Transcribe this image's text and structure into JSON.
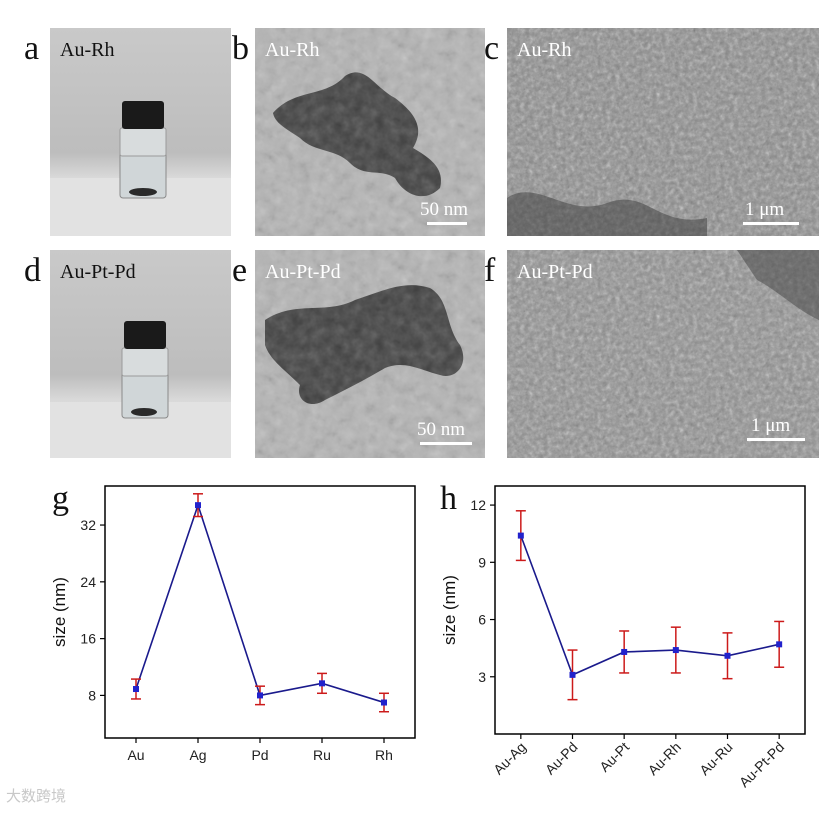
{
  "panels": {
    "a": {
      "letter": "a",
      "label": "Au-Rh"
    },
    "b": {
      "letter": "b",
      "label": "Au-Rh",
      "scale": "50 nm"
    },
    "c": {
      "letter": "c",
      "label": "Au-Rh",
      "scale": "1 μm"
    },
    "d": {
      "letter": "d",
      "label": "Au-Pt-Pd"
    },
    "e": {
      "letter": "e",
      "label": "Au-Pt-Pd",
      "scale": "50 nm"
    },
    "f": {
      "letter": "f",
      "label": "Au-Pt-Pd",
      "scale": "1 μm"
    },
    "g": {
      "letter": "g"
    },
    "h": {
      "letter": "h"
    }
  },
  "watermark": "大数跨境",
  "colors": {
    "line": "#1a1a8c",
    "marker": "#2222cc",
    "errorbar": "#cc1a1a",
    "frame": "#000000"
  },
  "chart_data": [
    {
      "type": "line",
      "panel": "g",
      "categories": [
        "Au",
        "Ag",
        "Pd",
        "Ru",
        "Rh"
      ],
      "values": [
        8.9,
        34.8,
        8.0,
        9.7,
        7.0
      ],
      "errors": [
        1.4,
        1.6,
        1.3,
        1.4,
        1.3
      ],
      "ylabel": "size (nm)",
      "yticks": [
        8,
        16,
        24,
        32
      ],
      "ylim": [
        2,
        37.5
      ]
    },
    {
      "type": "line",
      "panel": "h",
      "categories": [
        "Au-Ag",
        "Au-Pd",
        "Au-Pt",
        "Au-Rh",
        "Au-Ru",
        "Au-Pt-Pd"
      ],
      "values": [
        10.4,
        3.1,
        4.3,
        4.4,
        4.1,
        4.7
      ],
      "errors": [
        1.3,
        1.3,
        1.1,
        1.2,
        1.2,
        1.2
      ],
      "ylabel": "size (nm)",
      "yticks": [
        3,
        6,
        9,
        12
      ],
      "ylim": [
        0,
        13
      ]
    }
  ]
}
